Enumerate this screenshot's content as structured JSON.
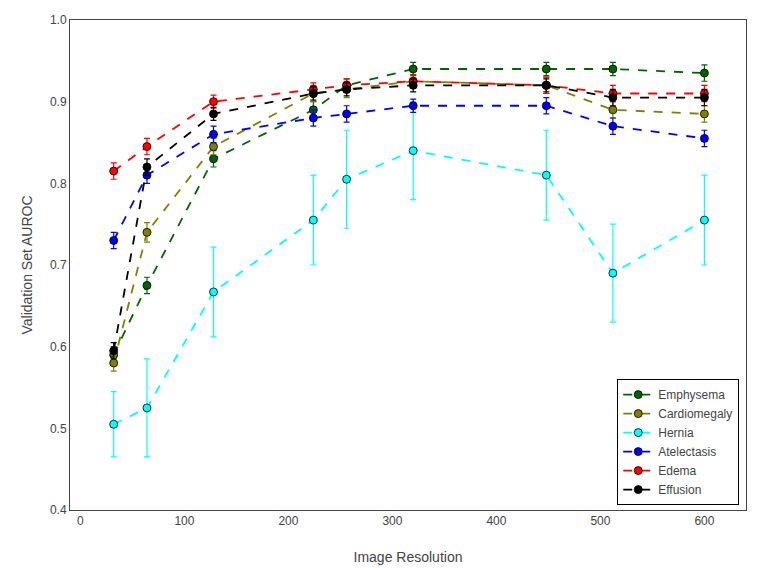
{
  "chart_data": {
    "type": "line",
    "x": [
      32,
      64,
      128,
      224,
      256,
      320,
      448,
      512,
      600
    ],
    "series": [
      {
        "name": "Emphysema",
        "color": "#006400",
        "values": [
          0.59,
          0.675,
          0.83,
          0.89,
          0.92,
          0.94,
          0.94,
          0.94,
          0.935
        ],
        "errors": [
          0.01,
          0.01,
          0.01,
          0.01,
          0.008,
          0.008,
          0.008,
          0.008,
          0.01
        ]
      },
      {
        "name": "Cardiomegaly",
        "color": "#808000",
        "values": [
          0.58,
          0.74,
          0.845,
          0.91,
          0.915,
          0.925,
          0.92,
          0.89,
          0.885
        ],
        "errors": [
          0.01,
          0.012,
          0.01,
          0.01,
          0.01,
          0.008,
          0.01,
          0.01,
          0.01
        ]
      },
      {
        "name": "Hernia",
        "color": "#00FFFF",
        "values": [
          0.505,
          0.525,
          0.667,
          0.755,
          0.805,
          0.84,
          0.81,
          0.69,
          0.755
        ],
        "errors": [
          0.04,
          0.06,
          0.055,
          0.055,
          0.06,
          0.06,
          0.055,
          0.06,
          0.055
        ]
      },
      {
        "name": "Atelectasis",
        "color": "#0000FF",
        "values": [
          0.73,
          0.81,
          0.86,
          0.88,
          0.885,
          0.895,
          0.895,
          0.87,
          0.855
        ],
        "errors": [
          0.01,
          0.01,
          0.01,
          0.01,
          0.01,
          0.008,
          0.01,
          0.01,
          0.01
        ]
      },
      {
        "name": "Edema",
        "color": "#FF0000",
        "values": [
          0.815,
          0.845,
          0.9,
          0.915,
          0.92,
          0.925,
          0.92,
          0.91,
          0.91
        ],
        "errors": [
          0.01,
          0.01,
          0.008,
          0.008,
          0.008,
          0.008,
          0.01,
          0.01,
          0.01
        ]
      },
      {
        "name": "Effusion",
        "color": "#000000",
        "values": [
          0.595,
          0.82,
          0.885,
          0.91,
          0.915,
          0.92,
          0.92,
          0.905,
          0.905
        ],
        "errors": [
          0.01,
          0.01,
          0.008,
          0.008,
          0.008,
          0.008,
          0.008,
          0.01,
          0.01
        ]
      }
    ],
    "xlabel": "Image Resolution",
    "ylabel": "Validation Set AUROC",
    "xlim": [
      -10,
      640
    ],
    "ylim": [
      0.4,
      1.0
    ],
    "xticks": [
      0,
      100,
      200,
      300,
      400,
      500,
      600
    ],
    "yticks": [
      0.4,
      0.5,
      0.6,
      0.7,
      0.8,
      0.9,
      {
        "value": 1.0,
        "label": "1.0"
      }
    ],
    "marker": "circle",
    "line_style": "dashed",
    "legend": "lower right",
    "grid": false
  }
}
